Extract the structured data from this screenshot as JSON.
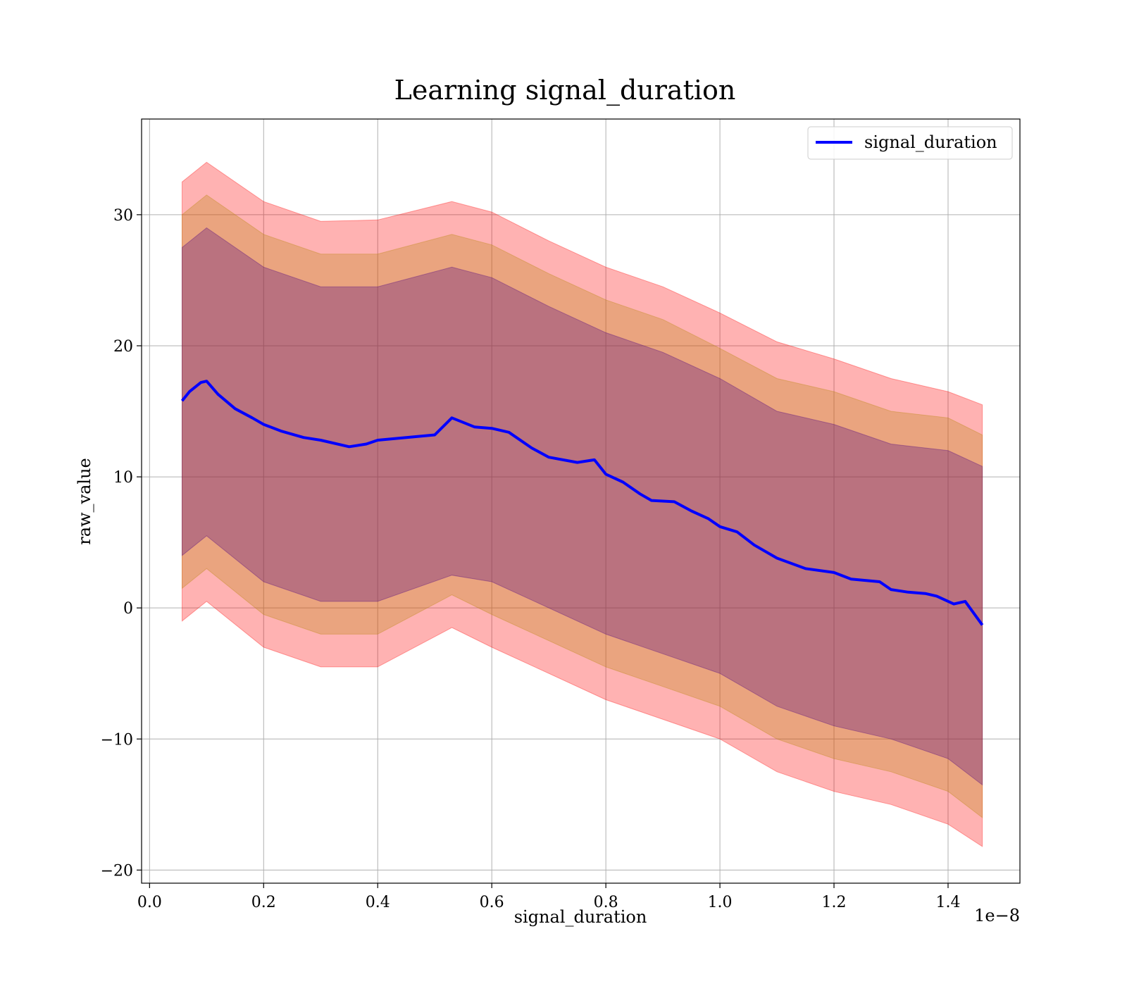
{
  "chart_data": {
    "type": "line",
    "title": "Learning signal_duration",
    "xlabel": "signal_duration",
    "ylabel": "raw_value",
    "x_offset_label": "1e−8",
    "xlim": [
      -0.014,
      1.526
    ],
    "ylim": [
      -21,
      37.3
    ],
    "x_ticks": [
      0.0,
      0.2,
      0.4,
      0.6,
      0.8,
      1.0,
      1.2,
      1.4
    ],
    "x_tick_labels": [
      "0.0",
      "0.2",
      "0.4",
      "0.6",
      "0.8",
      "1.0",
      "1.2",
      "1.4"
    ],
    "y_ticks": [
      -20,
      -10,
      0,
      10,
      20,
      30
    ],
    "y_tick_labels": [
      "−20",
      "−10",
      "0",
      "10",
      "20",
      "30"
    ],
    "grid": true,
    "legend": {
      "position": "upper right",
      "entries": [
        "signal_duration"
      ]
    },
    "colors": {
      "mean": "#0000ff",
      "band_outer": "#ff0000",
      "band_middle": "#b8860b",
      "band_inner": "#4b0082"
    },
    "series": [
      {
        "name": "signal_duration",
        "x": [
          0.057,
          0.07,
          0.09,
          0.1,
          0.12,
          0.15,
          0.18,
          0.2,
          0.23,
          0.27,
          0.3,
          0.35,
          0.38,
          0.4,
          0.45,
          0.5,
          0.53,
          0.57,
          0.6,
          0.63,
          0.67,
          0.7,
          0.75,
          0.78,
          0.8,
          0.83,
          0.86,
          0.88,
          0.92,
          0.95,
          0.98,
          1.0,
          1.03,
          1.06,
          1.1,
          1.15,
          1.2,
          1.23,
          1.28,
          1.3,
          1.33,
          1.36,
          1.38,
          1.41,
          1.43,
          1.46
        ],
        "y": [
          15.8,
          16.5,
          17.2,
          17.3,
          16.3,
          15.2,
          14.5,
          14.0,
          13.5,
          13.0,
          12.8,
          12.3,
          12.5,
          12.8,
          13.0,
          13.2,
          14.5,
          13.8,
          13.7,
          13.4,
          12.2,
          11.5,
          11.1,
          11.3,
          10.2,
          9.6,
          8.7,
          8.2,
          8.1,
          7.4,
          6.8,
          6.2,
          5.8,
          4.8,
          3.8,
          3.0,
          2.7,
          2.2,
          2.0,
          1.4,
          1.2,
          1.1,
          0.9,
          0.3,
          0.5,
          -1.3
        ]
      }
    ],
    "bands": [
      {
        "color": "#ff0000",
        "x": [
          0.057,
          0.1,
          0.2,
          0.3,
          0.4,
          0.53,
          0.6,
          0.7,
          0.8,
          0.9,
          1.0,
          1.1,
          1.2,
          1.3,
          1.4,
          1.46
        ],
        "upper": [
          32.5,
          34.0,
          31.0,
          29.5,
          29.6,
          31.0,
          30.2,
          28.0,
          26.0,
          24.5,
          22.5,
          20.3,
          19.0,
          17.5,
          16.5,
          15.5
        ],
        "lower": [
          -1.0,
          0.5,
          -3.0,
          -4.5,
          -4.5,
          -1.5,
          -3.0,
          -5.0,
          -7.0,
          -8.5,
          -10.0,
          -12.5,
          -14.0,
          -15.0,
          -16.5,
          -18.2
        ]
      },
      {
        "color": "#b8860b",
        "x": [
          0.057,
          0.1,
          0.2,
          0.3,
          0.4,
          0.53,
          0.6,
          0.7,
          0.8,
          0.9,
          1.0,
          1.1,
          1.2,
          1.3,
          1.4,
          1.46
        ],
        "upper": [
          30.0,
          31.5,
          28.5,
          27.0,
          27.0,
          28.5,
          27.7,
          25.5,
          23.5,
          22.0,
          19.8,
          17.5,
          16.5,
          15.0,
          14.5,
          13.2
        ],
        "lower": [
          1.5,
          3.0,
          -0.5,
          -2.0,
          -2.0,
          1.0,
          -0.5,
          -2.5,
          -4.5,
          -6.0,
          -7.5,
          -10.0,
          -11.5,
          -12.5,
          -14.0,
          -16.0
        ]
      },
      {
        "color": "#4b0082",
        "x": [
          0.057,
          0.1,
          0.2,
          0.3,
          0.4,
          0.53,
          0.6,
          0.7,
          0.8,
          0.9,
          1.0,
          1.1,
          1.2,
          1.3,
          1.4,
          1.46
        ],
        "upper": [
          27.5,
          29.0,
          26.0,
          24.5,
          24.5,
          26.0,
          25.2,
          23.0,
          21.0,
          19.5,
          17.5,
          15.0,
          14.0,
          12.5,
          12.0,
          10.8
        ],
        "lower": [
          4.0,
          5.5,
          2.0,
          0.5,
          0.5,
          2.5,
          2.0,
          0.0,
          -2.0,
          -3.5,
          -5.0,
          -7.5,
          -9.0,
          -10.0,
          -11.5,
          -13.5
        ]
      }
    ]
  }
}
